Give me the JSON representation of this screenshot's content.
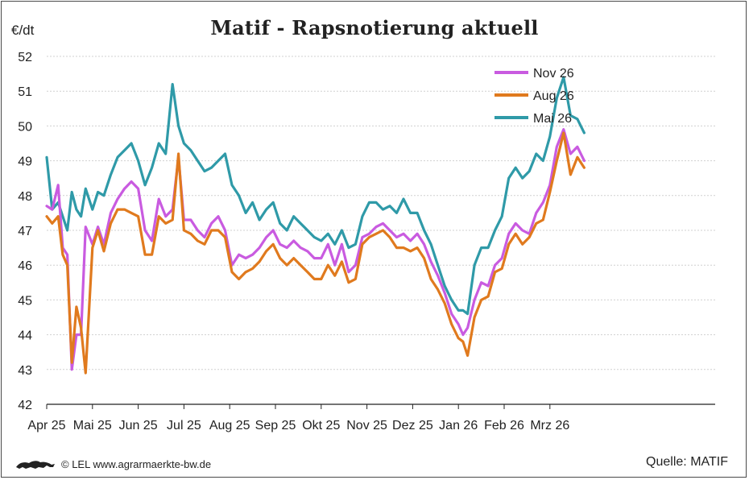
{
  "footer": {
    "credit": "© LEL www.agrarmaerkte-bw.de",
    "source": "Quelle: MATIF"
  },
  "chart_data": {
    "type": "line",
    "title": "Matif - Rapsnotierung aktuell",
    "ylabel": "€/dt",
    "xlabel": "",
    "ylim": [
      42,
      52
    ],
    "yticks": [
      "42",
      "43",
      "44",
      "45",
      "46",
      "47",
      "48",
      "49",
      "50",
      "51",
      "52"
    ],
    "x_ticks": [
      "Apr 25",
      "Mai 25",
      "Jun 25",
      "Jul 25",
      "Aug 25",
      "Sep 25",
      "Okt 25",
      "Nov 25",
      "Dez 25",
      "Jan 26",
      "Feb 26",
      "Mrz 26"
    ],
    "x_range_months": [
      0,
      11.75
    ],
    "grid": true,
    "legend_position": "top-right",
    "series": [
      {
        "name": "Nov 26",
        "color": "#c95be0",
        "x": [
          0,
          0.12,
          0.25,
          0.35,
          0.45,
          0.55,
          0.65,
          0.75,
          0.85,
          1.0,
          1.12,
          1.25,
          1.4,
          1.55,
          1.7,
          1.85,
          2.0,
          2.15,
          2.3,
          2.45,
          2.6,
          2.75,
          2.88,
          3.0,
          3.15,
          3.3,
          3.45,
          3.6,
          3.75,
          3.9,
          4.05,
          4.2,
          4.35,
          4.5,
          4.65,
          4.8,
          4.95,
          5.1,
          5.25,
          5.4,
          5.55,
          5.7,
          5.85,
          6.0,
          6.15,
          6.3,
          6.45,
          6.6,
          6.75,
          6.9,
          7.05,
          7.2,
          7.35,
          7.5,
          7.65,
          7.8,
          7.95,
          8.1,
          8.25,
          8.4,
          8.55,
          8.7,
          8.85,
          9.0,
          9.1,
          9.2,
          9.35,
          9.5,
          9.65,
          9.8,
          9.95,
          10.1,
          10.25,
          10.4,
          10.55,
          10.7,
          10.85,
          11.0,
          11.15,
          11.3,
          11.45,
          11.6,
          11.75
        ],
        "values": [
          47.7,
          47.6,
          48.3,
          46.5,
          46.3,
          43.0,
          44.0,
          44.0,
          47.1,
          46.6,
          47.1,
          46.6,
          47.5,
          47.9,
          48.2,
          48.4,
          48.2,
          47.0,
          46.7,
          47.9,
          47.4,
          47.6,
          49.1,
          47.3,
          47.3,
          47.0,
          46.8,
          47.2,
          47.4,
          47.0,
          46.0,
          46.3,
          46.2,
          46.3,
          46.5,
          46.8,
          47.0,
          46.6,
          46.5,
          46.7,
          46.5,
          46.4,
          46.2,
          46.2,
          46.6,
          46.0,
          46.6,
          45.8,
          46.0,
          46.8,
          46.9,
          47.1,
          47.2,
          47.0,
          46.8,
          46.9,
          46.7,
          46.9,
          46.6,
          46.1,
          45.7,
          45.2,
          44.6,
          44.3,
          44.0,
          44.2,
          45.0,
          45.5,
          45.4,
          46.0,
          46.2,
          46.9,
          47.2,
          47.0,
          46.9,
          47.5,
          47.8,
          48.3,
          49.4,
          49.9,
          49.2,
          49.4,
          49.0
        ]
      },
      {
        "name": "Aug 26",
        "color": "#e07a1e",
        "x": [
          0,
          0.12,
          0.25,
          0.35,
          0.45,
          0.55,
          0.65,
          0.75,
          0.85,
          1.0,
          1.12,
          1.25,
          1.4,
          1.55,
          1.7,
          1.85,
          2.0,
          2.15,
          2.3,
          2.45,
          2.6,
          2.75,
          2.88,
          3.0,
          3.15,
          3.3,
          3.45,
          3.6,
          3.75,
          3.9,
          4.05,
          4.2,
          4.35,
          4.5,
          4.65,
          4.8,
          4.95,
          5.1,
          5.25,
          5.4,
          5.55,
          5.7,
          5.85,
          6.0,
          6.15,
          6.3,
          6.45,
          6.6,
          6.75,
          6.9,
          7.05,
          7.2,
          7.35,
          7.5,
          7.65,
          7.8,
          7.95,
          8.1,
          8.25,
          8.4,
          8.55,
          8.7,
          8.85,
          9.0,
          9.1,
          9.2,
          9.35,
          9.5,
          9.65,
          9.8,
          9.95,
          10.1,
          10.25,
          10.4,
          10.55,
          10.7,
          10.85,
          11.0,
          11.15,
          11.3,
          11.45,
          11.6,
          11.75
        ],
        "values": [
          47.4,
          47.2,
          47.4,
          46.3,
          46.0,
          43.2,
          44.8,
          44.2,
          42.9,
          46.5,
          47.0,
          46.4,
          47.2,
          47.6,
          47.6,
          47.5,
          47.4,
          46.3,
          46.3,
          47.4,
          47.2,
          47.3,
          49.2,
          47.0,
          46.9,
          46.7,
          46.6,
          47.0,
          47.0,
          46.8,
          45.8,
          45.6,
          45.8,
          45.9,
          46.1,
          46.4,
          46.6,
          46.2,
          46.0,
          46.2,
          46.0,
          45.8,
          45.6,
          45.6,
          46.0,
          45.7,
          46.1,
          45.5,
          45.6,
          46.6,
          46.8,
          46.9,
          47.0,
          46.8,
          46.5,
          46.5,
          46.4,
          46.5,
          46.2,
          45.6,
          45.3,
          44.9,
          44.3,
          43.9,
          43.8,
          43.4,
          44.5,
          45.0,
          45.1,
          45.8,
          45.9,
          46.6,
          46.9,
          46.6,
          46.8,
          47.2,
          47.3,
          48.1,
          49.0,
          49.8,
          48.6,
          49.1,
          48.8
        ]
      },
      {
        "name": "Mai 26",
        "color": "#2f9aa8",
        "x": [
          0,
          0.12,
          0.25,
          0.35,
          0.45,
          0.55,
          0.65,
          0.75,
          0.85,
          1.0,
          1.12,
          1.25,
          1.4,
          1.55,
          1.7,
          1.85,
          2.0,
          2.15,
          2.3,
          2.45,
          2.6,
          2.75,
          2.88,
          3.0,
          3.15,
          3.3,
          3.45,
          3.6,
          3.75,
          3.9,
          4.05,
          4.2,
          4.35,
          4.5,
          4.65,
          4.8,
          4.95,
          5.1,
          5.25,
          5.4,
          5.55,
          5.7,
          5.85,
          6.0,
          6.15,
          6.3,
          6.45,
          6.6,
          6.75,
          6.9,
          7.05,
          7.2,
          7.35,
          7.5,
          7.65,
          7.8,
          7.95,
          8.1,
          8.25,
          8.4,
          8.55,
          8.7,
          8.85,
          9.0,
          9.1,
          9.2,
          9.35,
          9.5,
          9.65,
          9.8,
          9.95,
          10.1,
          10.25,
          10.4,
          10.55,
          10.7,
          10.85,
          11.0,
          11.15,
          11.3,
          11.45,
          11.6,
          11.75
        ],
        "values": [
          49.1,
          47.6,
          47.8,
          47.4,
          47.0,
          48.1,
          47.6,
          47.4,
          48.2,
          47.6,
          48.1,
          48.0,
          48.6,
          49.1,
          49.3,
          49.5,
          49.0,
          48.3,
          48.8,
          49.5,
          49.2,
          51.2,
          50.0,
          49.5,
          49.3,
          49.0,
          48.7,
          48.8,
          49.0,
          49.2,
          48.3,
          48.0,
          47.5,
          47.8,
          47.3,
          47.6,
          47.8,
          47.2,
          47.0,
          47.4,
          47.2,
          47.0,
          46.8,
          46.7,
          46.9,
          46.6,
          47.0,
          46.5,
          46.6,
          47.4,
          47.8,
          47.8,
          47.6,
          47.7,
          47.5,
          47.9,
          47.5,
          47.5,
          47.0,
          46.6,
          46.0,
          45.4,
          45.0,
          44.7,
          44.7,
          44.6,
          46.0,
          46.5,
          46.5,
          47.0,
          47.4,
          48.5,
          48.8,
          48.5,
          48.7,
          49.2,
          49.0,
          49.7,
          50.8,
          51.4,
          50.3,
          50.2,
          49.8
        ]
      }
    ]
  }
}
